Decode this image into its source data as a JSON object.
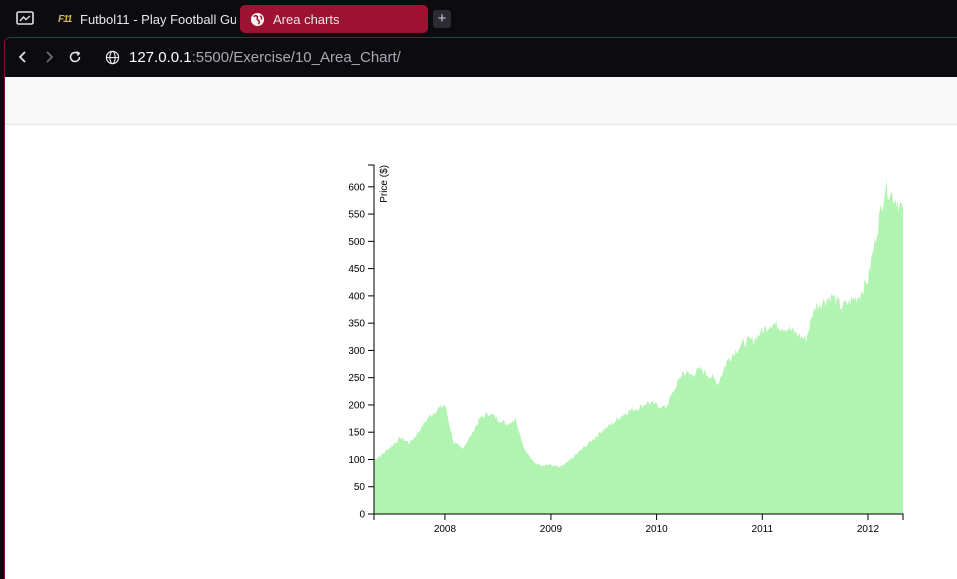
{
  "browser": {
    "tabs": [
      {
        "label": "Futbol11 - Play Football Gu",
        "icon": "futbol11-favicon",
        "favicon_text": "F11"
      },
      {
        "label": "Area charts",
        "icon": "globe-icon",
        "active": true
      }
    ],
    "new_tab_label": "+",
    "url_host": "127.0.0.1",
    "url_rest": ":5500/Exercise/10_Area_Chart/",
    "accent": "#9d1230"
  },
  "chart_data": {
    "type": "area",
    "title": "",
    "xlabel": "",
    "ylabel": "Price ($)",
    "color": "#b1f3b1",
    "x_domain": [
      "2007-05-01",
      "2012-05-01"
    ],
    "xticks": [
      "2008",
      "2009",
      "2010",
      "2011",
      "2012"
    ],
    "ylim": [
      0,
      640
    ],
    "yticks": [
      0,
      50,
      100,
      150,
      200,
      250,
      300,
      350,
      400,
      450,
      500,
      550,
      600
    ],
    "grid": false,
    "legend": "none",
    "series": [
      {
        "x": [
          "2007-05-01",
          "2007-06-01",
          "2007-07-01",
          "2007-08-01",
          "2007-09-01",
          "2007-10-01",
          "2007-11-01",
          "2007-12-01",
          "2008-01-01",
          "2008-02-01",
          "2008-03-01",
          "2008-04-01",
          "2008-05-01",
          "2008-06-01",
          "2008-07-01",
          "2008-08-01",
          "2008-09-01",
          "2008-10-01",
          "2008-11-01",
          "2008-12-01",
          "2009-01-01",
          "2009-02-01",
          "2009-03-01",
          "2009-04-01",
          "2009-05-01",
          "2009-06-01",
          "2009-07-01",
          "2009-08-01",
          "2009-09-01",
          "2009-10-01",
          "2009-11-01",
          "2009-12-01",
          "2010-01-01",
          "2010-02-01",
          "2010-03-01",
          "2010-04-01",
          "2010-05-01",
          "2010-06-01",
          "2010-07-01",
          "2010-08-01",
          "2010-09-01",
          "2010-10-01",
          "2010-11-01",
          "2010-12-01",
          "2011-01-01",
          "2011-02-01",
          "2011-03-01",
          "2011-04-01",
          "2011-05-01",
          "2011-06-01",
          "2011-07-01",
          "2011-08-01",
          "2011-09-01",
          "2011-10-01",
          "2011-11-01",
          "2011-12-01",
          "2012-01-01",
          "2012-02-01",
          "2012-03-01",
          "2012-04-01",
          "2012-05-01"
        ],
        "y": [
          100,
          110,
          125,
          140,
          130,
          150,
          175,
          190,
          200,
          130,
          120,
          145,
          175,
          185,
          175,
          165,
          175,
          120,
          95,
          90,
          90,
          85,
          95,
          110,
          125,
          140,
          155,
          165,
          180,
          190,
          195,
          205,
          200,
          195,
          225,
          260,
          255,
          265,
          255,
          240,
          280,
          300,
          315,
          320,
          335,
          350,
          345,
          340,
          330,
          320,
          380,
          390,
          400,
          380,
          390,
          400,
          430,
          520,
          600,
          580,
          560
        ]
      }
    ]
  }
}
